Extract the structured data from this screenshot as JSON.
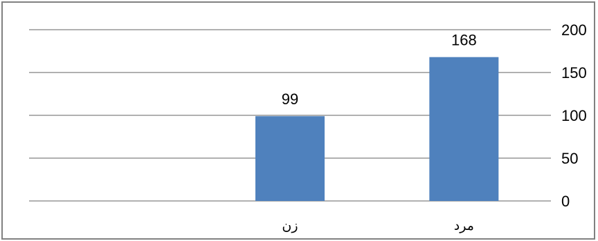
{
  "chart_data": {
    "type": "bar",
    "categories": [
      "مرد",
      "زن",
      ""
    ],
    "values": [
      168,
      99,
      null
    ],
    "title": "",
    "xlabel": "",
    "ylabel": "",
    "ylim": [
      0,
      200
    ],
    "yticks": [
      0,
      50,
      100,
      150,
      200
    ],
    "grid": true,
    "y_axis_side": "right",
    "x_direction": "right-to-left",
    "legend": "none",
    "bar_color": "#4F81BD",
    "gridline_color": "#808080",
    "border_color": "#808080"
  }
}
